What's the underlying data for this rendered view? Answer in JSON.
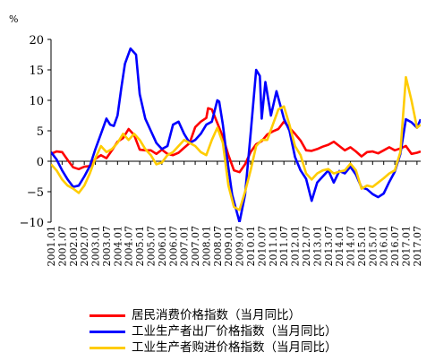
{
  "chart_data": {
    "type": "line",
    "unit": "%",
    "ylim": [
      -10,
      20
    ],
    "yticks": [
      20,
      15,
      10,
      5,
      0,
      -5,
      -10
    ],
    "x_start": "2001.01",
    "x_end": "2017.09",
    "xtick_labels": [
      "2001.01",
      "2001.07",
      "2002.01",
      "2002.07",
      "2003.01",
      "2003.07",
      "2004.01",
      "2004.07",
      "2005.01",
      "2005.07",
      "2006.01",
      "2006.07",
      "2007.01",
      "2007.07",
      "2008.01",
      "2008.07",
      "2009.01",
      "2009.07",
      "2010.01",
      "2010.07",
      "2011.01",
      "2011.07",
      "2012.01",
      "2012.07",
      "2013.01",
      "2013.07",
      "2014.01",
      "2014.07",
      "2015.01",
      "2015.07",
      "2016.01",
      "2016.07",
      "2017.01",
      "2017.07"
    ],
    "grid": false,
    "legend_position": "bottom",
    "series": [
      {
        "name": "居民消费价格指数（当月同比）",
        "color": "#ff0000",
        "points": [
          [
            "2001.01",
            1.2
          ],
          [
            "2001.04",
            1.6
          ],
          [
            "2001.07",
            1.5
          ],
          [
            "2001.10",
            0.2
          ],
          [
            "2002.01",
            -1.0
          ],
          [
            "2002.04",
            -1.3
          ],
          [
            "2002.07",
            -0.9
          ],
          [
            "2002.10",
            -0.8
          ],
          [
            "2003.01",
            0.4
          ],
          [
            "2003.04",
            1.0
          ],
          [
            "2003.07",
            0.5
          ],
          [
            "2003.10",
            1.8
          ],
          [
            "2004.01",
            3.2
          ],
          [
            "2004.04",
            3.8
          ],
          [
            "2004.07",
            5.3
          ],
          [
            "2004.10",
            4.3
          ],
          [
            "2005.01",
            1.9
          ],
          [
            "2005.04",
            1.8
          ],
          [
            "2005.07",
            1.8
          ],
          [
            "2005.10",
            1.2
          ],
          [
            "2006.01",
            1.9
          ],
          [
            "2006.04",
            1.2
          ],
          [
            "2006.07",
            1.0
          ],
          [
            "2006.10",
            1.4
          ],
          [
            "2007.01",
            2.2
          ],
          [
            "2007.04",
            3.0
          ],
          [
            "2007.07",
            5.6
          ],
          [
            "2007.10",
            6.5
          ],
          [
            "2008.01",
            7.1
          ],
          [
            "2008.02",
            8.7
          ],
          [
            "2008.04",
            8.5
          ],
          [
            "2008.07",
            6.3
          ],
          [
            "2008.10",
            4.0
          ],
          [
            "2009.01",
            1.0
          ],
          [
            "2009.04",
            -1.5
          ],
          [
            "2009.07",
            -1.8
          ],
          [
            "2009.10",
            -0.5
          ],
          [
            "2010.01",
            1.5
          ],
          [
            "2010.04",
            2.8
          ],
          [
            "2010.07",
            3.3
          ],
          [
            "2010.10",
            4.4
          ],
          [
            "2011.01",
            4.9
          ],
          [
            "2011.04",
            5.3
          ],
          [
            "2011.07",
            6.5
          ],
          [
            "2011.10",
            5.5
          ],
          [
            "2012.01",
            4.5
          ],
          [
            "2012.04",
            3.4
          ],
          [
            "2012.07",
            1.8
          ],
          [
            "2012.10",
            1.7
          ],
          [
            "2013.01",
            2.0
          ],
          [
            "2013.04",
            2.4
          ],
          [
            "2013.07",
            2.7
          ],
          [
            "2013.10",
            3.2
          ],
          [
            "2014.01",
            2.5
          ],
          [
            "2014.04",
            1.8
          ],
          [
            "2014.07",
            2.3
          ],
          [
            "2014.10",
            1.6
          ],
          [
            "2015.01",
            0.8
          ],
          [
            "2015.04",
            1.5
          ],
          [
            "2015.07",
            1.6
          ],
          [
            "2015.10",
            1.3
          ],
          [
            "2016.01",
            1.8
          ],
          [
            "2016.04",
            2.3
          ],
          [
            "2016.07",
            1.8
          ],
          [
            "2016.10",
            2.1
          ],
          [
            "2017.01",
            2.5
          ],
          [
            "2017.04",
            1.2
          ],
          [
            "2017.07",
            1.4
          ],
          [
            "2017.09",
            1.6
          ]
        ]
      },
      {
        "name": "工业生产者出厂价格指数（当月同比）",
        "color": "#0000ff",
        "points": [
          [
            "2001.01",
            1.5
          ],
          [
            "2001.04",
            0.3
          ],
          [
            "2001.07",
            -1.5
          ],
          [
            "2001.10",
            -3.0
          ],
          [
            "2002.01",
            -4.2
          ],
          [
            "2002.04",
            -4.0
          ],
          [
            "2002.07",
            -2.5
          ],
          [
            "2002.10",
            -0.8
          ],
          [
            "2003.01",
            2.0
          ],
          [
            "2003.04",
            4.5
          ],
          [
            "2003.07",
            7.0
          ],
          [
            "2003.09",
            6.0
          ],
          [
            "2003.11",
            5.8
          ],
          [
            "2004.01",
            7.5
          ],
          [
            "2004.03",
            12.0
          ],
          [
            "2004.05",
            16.0
          ],
          [
            "2004.08",
            18.5
          ],
          [
            "2004.11",
            17.5
          ],
          [
            "2005.01",
            11.0
          ],
          [
            "2005.04",
            7.0
          ],
          [
            "2005.07",
            5.0
          ],
          [
            "2005.10",
            3.0
          ],
          [
            "2006.01",
            2.0
          ],
          [
            "2006.04",
            2.5
          ],
          [
            "2006.07",
            6.0
          ],
          [
            "2006.10",
            6.5
          ],
          [
            "2007.01",
            4.5
          ],
          [
            "2007.04",
            3.0
          ],
          [
            "2007.07",
            3.5
          ],
          [
            "2007.10",
            4.5
          ],
          [
            "2008.01",
            6.0
          ],
          [
            "2008.04",
            6.5
          ],
          [
            "2008.07",
            10.0
          ],
          [
            "2008.08",
            9.8
          ],
          [
            "2008.10",
            6.0
          ],
          [
            "2008.12",
            1.0
          ],
          [
            "2009.03",
            -5.5
          ],
          [
            "2009.07",
            -10.0
          ],
          [
            "2009.10",
            -5.5
          ],
          [
            "2010.01",
            4.5
          ],
          [
            "2010.04",
            15.0
          ],
          [
            "2010.06",
            14.0
          ],
          [
            "2010.07",
            7.0
          ],
          [
            "2010.09",
            13.0
          ],
          [
            "2010.12",
            7.5
          ],
          [
            "2011.03",
            11.5
          ],
          [
            "2011.07",
            7.0
          ],
          [
            "2011.10",
            5.0
          ],
          [
            "2012.01",
            0.7
          ],
          [
            "2012.04",
            -1.5
          ],
          [
            "2012.07",
            -2.9
          ],
          [
            "2012.10",
            -6.5
          ],
          [
            "2013.01",
            -3.5
          ],
          [
            "2013.04",
            -2.5
          ],
          [
            "2013.07",
            -1.5
          ],
          [
            "2013.10",
            -3.5
          ],
          [
            "2014.01",
            -1.6
          ],
          [
            "2014.04",
            -2.0
          ],
          [
            "2014.07",
            -0.9
          ],
          [
            "2014.10",
            -2.2
          ],
          [
            "2015.01",
            -4.3
          ],
          [
            "2015.04",
            -4.6
          ],
          [
            "2015.07",
            -5.4
          ],
          [
            "2015.10",
            -5.9
          ],
          [
            "2016.01",
            -5.3
          ],
          [
            "2016.04",
            -3.4
          ],
          [
            "2016.07",
            -1.7
          ],
          [
            "2016.10",
            1.2
          ],
          [
            "2017.01",
            6.9
          ],
          [
            "2017.04",
            6.4
          ],
          [
            "2017.07",
            5.5
          ],
          [
            "2017.09",
            6.9
          ]
        ]
      },
      {
        "name": "工业生产者购进价格指数（当月同比）",
        "color": "#ffcc00",
        "points": [
          [
            "2001.01",
            -0.5
          ],
          [
            "2001.04",
            -1.5
          ],
          [
            "2001.07",
            -3.0
          ],
          [
            "2001.10",
            -4.0
          ],
          [
            "2002.01",
            -4.5
          ],
          [
            "2002.04",
            -5.2
          ],
          [
            "2002.07",
            -4.0
          ],
          [
            "2002.10",
            -2.0
          ],
          [
            "2003.01",
            0.5
          ],
          [
            "2003.04",
            2.5
          ],
          [
            "2003.07",
            1.5
          ],
          [
            "2003.10",
            2.0
          ],
          [
            "2004.01",
            3.0
          ],
          [
            "2004.04",
            4.5
          ],
          [
            "2004.07",
            3.5
          ],
          [
            "2004.10",
            4.5
          ],
          [
            "2005.01",
            3.5
          ],
          [
            "2005.04",
            2.0
          ],
          [
            "2005.07",
            1.0
          ],
          [
            "2005.10",
            -0.5
          ],
          [
            "2006.01",
            -0.2
          ],
          [
            "2006.04",
            1.0
          ],
          [
            "2006.07",
            1.5
          ],
          [
            "2006.10",
            2.5
          ],
          [
            "2007.01",
            3.5
          ],
          [
            "2007.04",
            3.0
          ],
          [
            "2007.07",
            2.5
          ],
          [
            "2007.10",
            1.5
          ],
          [
            "2008.01",
            1.0
          ],
          [
            "2008.04",
            3.5
          ],
          [
            "2008.07",
            5.5
          ],
          [
            "2008.10",
            3.0
          ],
          [
            "2009.01",
            -4.0
          ],
          [
            "2009.04",
            -7.5
          ],
          [
            "2009.07",
            -8.0
          ],
          [
            "2009.10",
            -5.0
          ],
          [
            "2010.01",
            -1.5
          ],
          [
            "2010.04",
            2.5
          ],
          [
            "2010.07",
            3.5
          ],
          [
            "2010.10",
            3.5
          ],
          [
            "2011.01",
            6.0
          ],
          [
            "2011.04",
            8.5
          ],
          [
            "2011.07",
            9.0
          ],
          [
            "2011.10",
            6.0
          ],
          [
            "2012.01",
            2.5
          ],
          [
            "2012.04",
            1.0
          ],
          [
            "2012.07",
            -2.0
          ],
          [
            "2012.10",
            -3.0
          ],
          [
            "2013.01",
            -2.0
          ],
          [
            "2013.04",
            -1.5
          ],
          [
            "2013.07",
            -1.3
          ],
          [
            "2013.10",
            -2.0
          ],
          [
            "2014.01",
            -1.7
          ],
          [
            "2014.04",
            -1.5
          ],
          [
            "2014.07",
            -0.4
          ],
          [
            "2014.10",
            -1.5
          ],
          [
            "2015.01",
            -4.5
          ],
          [
            "2015.04",
            -4.0
          ],
          [
            "2015.07",
            -4.2
          ],
          [
            "2015.10",
            -3.5
          ],
          [
            "2016.01",
            -2.8
          ],
          [
            "2016.04",
            -2.0
          ],
          [
            "2016.07",
            -1.5
          ],
          [
            "2016.10",
            1.5
          ],
          [
            "2017.01",
            13.8
          ],
          [
            "2017.04",
            10.0
          ],
          [
            "2017.07",
            5.5
          ],
          [
            "2017.09",
            6.0
          ]
        ]
      }
    ]
  }
}
